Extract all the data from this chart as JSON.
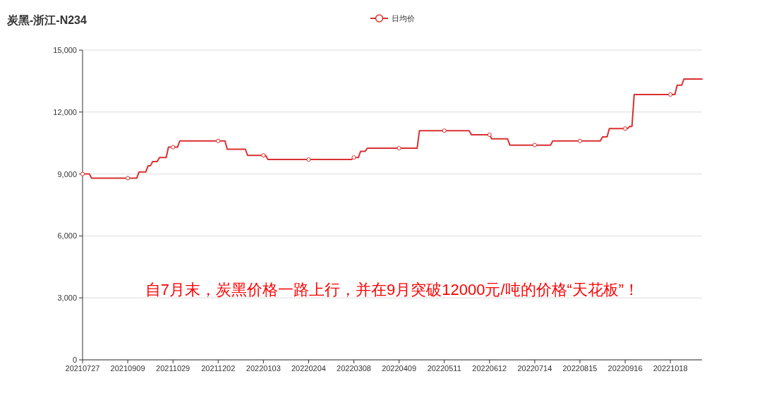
{
  "chart_data": {
    "type": "line",
    "title": "炭黑-浙江-N234",
    "categories": [
      "20210727",
      null,
      null,
      null,
      null,
      null,
      null,
      null,
      null,
      null,
      null,
      null,
      null,
      null,
      null,
      null,
      null,
      null,
      null,
      null,
      "20210909",
      null,
      null,
      null,
      null,
      null,
      null,
      null,
      null,
      null,
      null,
      null,
      null,
      null,
      null,
      null,
      null,
      null,
      null,
      null,
      "20211029",
      null,
      null,
      null,
      null,
      null,
      null,
      null,
      null,
      null,
      null,
      null,
      null,
      null,
      null,
      null,
      null,
      null,
      null,
      null,
      "20211202",
      null,
      null,
      null,
      null,
      null,
      null,
      null,
      null,
      null,
      null,
      null,
      null,
      null,
      null,
      null,
      null,
      null,
      null,
      null,
      "20220103",
      null,
      null,
      null,
      null,
      null,
      null,
      null,
      null,
      null,
      null,
      null,
      null,
      null,
      null,
      null,
      null,
      null,
      null,
      null,
      "20220204",
      null,
      null,
      null,
      null,
      null,
      null,
      null,
      null,
      null,
      null,
      null,
      null,
      null,
      null,
      null,
      null,
      null,
      null,
      null,
      "20220308",
      null,
      null,
      null,
      null,
      null,
      null,
      null,
      null,
      null,
      null,
      null,
      null,
      null,
      null,
      null,
      null,
      null,
      null,
      null,
      "20220409",
      null,
      null,
      null,
      null,
      null,
      null,
      null,
      null,
      null,
      null,
      null,
      null,
      null,
      null,
      null,
      null,
      null,
      null,
      null,
      "20220511",
      null,
      null,
      null,
      null,
      null,
      null,
      null,
      null,
      null,
      null,
      null,
      null,
      null,
      null,
      null,
      null,
      null,
      null,
      null,
      "20220612",
      null,
      null,
      null,
      null,
      null,
      null,
      null,
      null,
      null,
      null,
      null,
      null,
      null,
      null,
      null,
      null,
      null,
      null,
      null,
      "20220714",
      null,
      null,
      null,
      null,
      null,
      null,
      null,
      null,
      null,
      null,
      null,
      null,
      null,
      null,
      null,
      null,
      null,
      null,
      null,
      "20220815",
      null,
      null,
      null,
      null,
      null,
      null,
      null,
      null,
      null,
      null,
      null,
      null,
      null,
      null,
      null,
      null,
      null,
      null,
      null,
      "20220916",
      null,
      null,
      null,
      null,
      null,
      null,
      null,
      null,
      null,
      null,
      null,
      null,
      null,
      null,
      null,
      null,
      null,
      null,
      null,
      "20221018",
      null,
      null,
      null,
      null,
      null,
      null,
      null,
      null,
      null,
      null,
      null,
      null,
      null,
      null
    ],
    "series": [
      {
        "name": "日均价",
        "color": "#d93030",
        "marker": "none",
        "values": [
          9000,
          9000,
          9000,
          9000,
          8800,
          8800,
          8800,
          8800,
          8800,
          8800,
          8800,
          8800,
          8800,
          8800,
          8800,
          8800,
          8800,
          8800,
          8800,
          8800,
          8800,
          8800,
          8800,
          8800,
          8800,
          9100,
          9100,
          9100,
          9100,
          9400,
          9400,
          9600,
          9600,
          9600,
          9800,
          9800,
          9800,
          9800,
          10300,
          10300,
          10300,
          10300,
          10300,
          10600,
          10600,
          10600,
          10600,
          10600,
          10600,
          10600,
          10600,
          10600,
          10600,
          10600,
          10600,
          10600,
          10600,
          10600,
          10600,
          10600,
          10600,
          10600,
          10600,
          10600,
          10200,
          10200,
          10200,
          10200,
          10200,
          10200,
          10200,
          10200,
          10200,
          9900,
          9900,
          9900,
          9900,
          9900,
          9900,
          9900,
          9900,
          9900,
          9700,
          9700,
          9700,
          9700,
          9700,
          9700,
          9700,
          9700,
          9700,
          9700,
          9700,
          9700,
          9700,
          9700,
          9700,
          9700,
          9700,
          9700,
          9700,
          9700,
          9700,
          9700,
          9700,
          9700,
          9700,
          9700,
          9700,
          9700,
          9700,
          9700,
          9700,
          9700,
          9700,
          9700,
          9700,
          9700,
          9700,
          9700,
          9800,
          9800,
          9800,
          10100,
          10100,
          10100,
          10250,
          10250,
          10250,
          10250,
          10250,
          10250,
          10250,
          10250,
          10250,
          10250,
          10250,
          10250,
          10250,
          10250,
          10250,
          10250,
          10250,
          10250,
          10250,
          10250,
          10250,
          10250,
          10250,
          11100,
          11100,
          11100,
          11100,
          11100,
          11100,
          11100,
          11100,
          11100,
          11100,
          11100,
          11100,
          11100,
          11100,
          11100,
          11100,
          11100,
          11100,
          11100,
          11100,
          11100,
          11100,
          11100,
          10900,
          10900,
          10900,
          10900,
          10900,
          10900,
          10900,
          10900,
          10900,
          10700,
          10700,
          10700,
          10700,
          10700,
          10700,
          10700,
          10700,
          10400,
          10400,
          10400,
          10400,
          10400,
          10400,
          10400,
          10400,
          10400,
          10400,
          10400,
          10400,
          10400,
          10400,
          10400,
          10400,
          10400,
          10400,
          10400,
          10600,
          10600,
          10600,
          10600,
          10600,
          10600,
          10600,
          10600,
          10600,
          10600,
          10600,
          10600,
          10600,
          10600,
          10600,
          10600,
          10600,
          10600,
          10600,
          10600,
          10600,
          10600,
          10800,
          10800,
          10800,
          11200,
          11200,
          11200,
          11200,
          11200,
          11200,
          11200,
          11200,
          11200,
          11300,
          11300,
          12850,
          12850,
          12850,
          12850,
          12850,
          12850,
          12850,
          12850,
          12850,
          12850,
          12850,
          12850,
          12850,
          12850,
          12850,
          12850,
          12850,
          12850,
          12850,
          13300,
          13300,
          13300,
          13600,
          13600,
          13600,
          13600,
          13600,
          13600,
          13600,
          13600,
          13600
        ]
      },
      {
        "type": "scatter",
        "color": "#d93030",
        "marker": "circle",
        "x": [
          "20210727",
          "20210909",
          "20211029",
          "20211202",
          "20220103",
          "20220204",
          "20220308",
          "20220409",
          "20220511",
          "20220612",
          "20220714",
          "20220815",
          "20220916",
          "20221018"
        ],
        "values": [
          9000,
          8800,
          10300,
          10600,
          9900,
          9700,
          9800,
          10250,
          11100,
          10900,
          10400,
          10600,
          11200,
          12850
        ]
      }
    ],
    "ylim": [
      0,
      15000
    ],
    "yticks": [
      0,
      {
        "value": 3000,
        "label": "3,000"
      },
      {
        "value": 6000,
        "label": "6,000"
      },
      {
        "value": 9000,
        "label": "9,000"
      },
      {
        "value": 12000,
        "label": "12,000"
      },
      {
        "value": 15000,
        "label": "15,000"
      }
    ],
    "grid": "y",
    "legend": "top",
    "marker": "circle",
    "line_style": "solid",
    "annotations": [
      "自7月末，炭黑价格一路上行，并在9月突破12000元/吨的价格“天花板”！"
    ]
  }
}
